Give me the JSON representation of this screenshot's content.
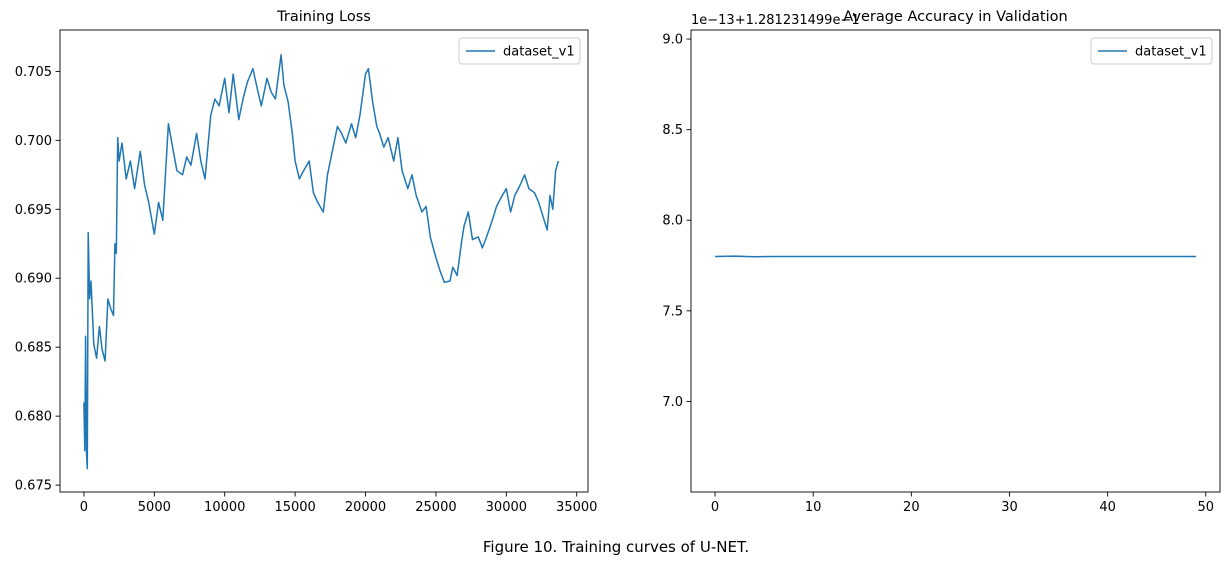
{
  "figure": {
    "caption": "Figure 10. Training curves of U-NET."
  },
  "colors": {
    "series": "#1f77b4",
    "axes": "#000000",
    "legend_border": "#cccccc"
  },
  "chart_data": [
    {
      "type": "line",
      "title": "Training Loss",
      "xlabel": "",
      "ylabel": "",
      "xlim": [
        -1700,
        35800
      ],
      "ylim": [
        0.6745,
        0.708
      ],
      "x_ticks": [
        0,
        5000,
        10000,
        15000,
        20000,
        25000,
        30000,
        35000
      ],
      "x_tick_labels": [
        "0",
        "5000",
        "10000",
        "15000",
        "20000",
        "25000",
        "30000",
        "35000"
      ],
      "y_ticks": [
        0.675,
        0.68,
        0.685,
        0.69,
        0.695,
        0.7,
        0.705
      ],
      "y_tick_labels": [
        "0.675",
        "0.680",
        "0.685",
        "0.690",
        "0.695",
        "0.700",
        "0.705"
      ],
      "grid": false,
      "legend": "upper right",
      "series": [
        {
          "name": "dataset_v1",
          "x": [
            0,
            60,
            120,
            180,
            240,
            300,
            400,
            500,
            700,
            900,
            1100,
            1300,
            1500,
            1700,
            1900,
            2100,
            2200,
            2300,
            2400,
            2500,
            2700,
            3000,
            3300,
            3600,
            4000,
            4300,
            4600,
            5000,
            5300,
            5600,
            6000,
            6300,
            6600,
            7000,
            7300,
            7600,
            8000,
            8300,
            8600,
            9000,
            9300,
            9600,
            10000,
            10300,
            10600,
            11000,
            11300,
            11600,
            12000,
            12300,
            12600,
            13000,
            13300,
            13600,
            14000,
            14200,
            14500,
            14800,
            15000,
            15300,
            15600,
            16000,
            16300,
            16600,
            17000,
            17300,
            17600,
            18000,
            18300,
            18600,
            19000,
            19300,
            19600,
            20000,
            20200,
            20500,
            20800,
            21000,
            21300,
            21600,
            22000,
            22300,
            22600,
            23000,
            23300,
            23600,
            24000,
            24300,
            24600,
            25000,
            25300,
            25600,
            26000,
            26200,
            26500,
            26800,
            27000,
            27300,
            27600,
            28000,
            28300,
            28600,
            29000,
            29300,
            29600,
            30000,
            30300,
            30600,
            31000,
            31300,
            31600,
            32000,
            32300,
            32600,
            32900,
            33100,
            33300,
            33500,
            33700
          ],
          "y": [
            0.681,
            0.6775,
            0.6858,
            0.6773,
            0.6762,
            0.6933,
            0.6885,
            0.6898,
            0.6852,
            0.6842,
            0.6865,
            0.6848,
            0.684,
            0.6885,
            0.6878,
            0.6873,
            0.6925,
            0.6918,
            0.7002,
            0.6985,
            0.6998,
            0.6972,
            0.6985,
            0.6965,
            0.6992,
            0.6968,
            0.6955,
            0.6932,
            0.6955,
            0.6942,
            0.7012,
            0.6995,
            0.6978,
            0.6975,
            0.6988,
            0.6982,
            0.7005,
            0.6985,
            0.6972,
            0.7018,
            0.703,
            0.7025,
            0.7045,
            0.702,
            0.7048,
            0.7015,
            0.703,
            0.7042,
            0.7052,
            0.7038,
            0.7025,
            0.7045,
            0.7035,
            0.703,
            0.7062,
            0.704,
            0.7028,
            0.7005,
            0.6985,
            0.6972,
            0.6978,
            0.6985,
            0.6962,
            0.6955,
            0.6948,
            0.6975,
            0.699,
            0.701,
            0.7005,
            0.6998,
            0.7012,
            0.7002,
            0.7018,
            0.7048,
            0.7052,
            0.7028,
            0.701,
            0.7005,
            0.6995,
            0.7002,
            0.6985,
            0.7002,
            0.6978,
            0.6965,
            0.6975,
            0.696,
            0.6948,
            0.6952,
            0.693,
            0.6915,
            0.6905,
            0.6897,
            0.6898,
            0.6908,
            0.6902,
            0.6925,
            0.6938,
            0.6948,
            0.6928,
            0.693,
            0.6922,
            0.693,
            0.6942,
            0.6952,
            0.6958,
            0.6965,
            0.6948,
            0.696,
            0.6968,
            0.6975,
            0.6965,
            0.6962,
            0.6955,
            0.6945,
            0.6935,
            0.696,
            0.695,
            0.6978,
            0.6985
          ]
        }
      ]
    },
    {
      "type": "line",
      "title": "Average Accuracy in Validation",
      "offset_text": "1e−13+1.281231499e−1",
      "xlabel": "",
      "ylabel": "",
      "xlim": [
        -2.45,
        51.45
      ],
      "ylim": [
        6.5,
        9.05
      ],
      "x_ticks": [
        0,
        10,
        20,
        30,
        40,
        50
      ],
      "x_tick_labels": [
        "0",
        "10",
        "20",
        "30",
        "40",
        "50"
      ],
      "y_ticks": [
        7.0,
        7.5,
        8.0,
        8.5,
        9.0
      ],
      "y_tick_labels": [
        "7.0",
        "7.5",
        "8.0",
        "8.5",
        "9.0"
      ],
      "grid": false,
      "legend": "upper right",
      "series": [
        {
          "name": "dataset_v1",
          "x": [
            0,
            2,
            4,
            6,
            8,
            10,
            15,
            20,
            25,
            30,
            35,
            40,
            45,
            49
          ],
          "y": [
            7.8,
            7.802,
            7.798,
            7.8,
            7.8,
            7.8,
            7.8,
            7.8,
            7.8,
            7.8,
            7.8,
            7.8,
            7.8,
            7.8
          ]
        }
      ]
    }
  ]
}
